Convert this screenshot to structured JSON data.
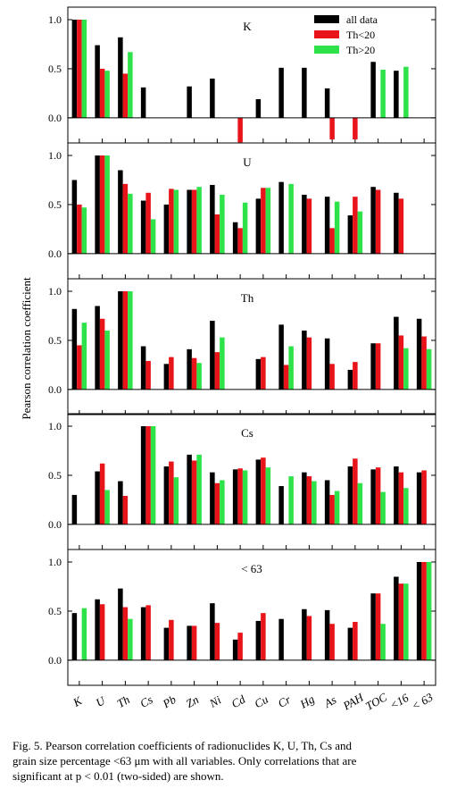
{
  "ylabel": "Pearson correlation coefficient",
  "x_labels": [
    "K",
    "U",
    "Th",
    "Cs",
    "Pb",
    "Zn",
    "Ni",
    "Cd",
    "Cu",
    "Cr",
    "Hg",
    "As",
    "PAH",
    "TOC",
    "<16",
    "< 63"
  ],
  "legend": [
    {
      "name": "all data",
      "color": "#000000"
    },
    {
      "name": "Th<20",
      "color": "#e8141a"
    },
    {
      "name": "Th>20",
      "color": "#2ee34a"
    }
  ],
  "panel_ticks": [
    "0.0",
    "0.5",
    "1.0"
  ],
  "chart_data": [
    {
      "type": "bar",
      "title": "K",
      "ylim": [
        -0.25,
        1.05
      ],
      "series": [
        {
          "name": "all data",
          "values": [
            1.0,
            0.74,
            0.82,
            0.31,
            null,
            0.32,
            0.4,
            null,
            0.19,
            0.51,
            0.51,
            0.3,
            null,
            0.57,
            0.48,
            null
          ]
        },
        {
          "name": "Th<20",
          "values": [
            1.0,
            0.5,
            0.45,
            null,
            null,
            null,
            null,
            -0.25,
            null,
            null,
            null,
            -0.22,
            -0.22,
            null,
            null,
            null
          ]
        },
        {
          "name": "Th>20",
          "values": [
            1.0,
            0.48,
            0.67,
            null,
            null,
            null,
            null,
            null,
            null,
            null,
            null,
            null,
            null,
            0.49,
            0.52,
            null
          ]
        }
      ]
    },
    {
      "type": "bar",
      "title": "U",
      "ylim": [
        -0.25,
        1.05
      ],
      "series": [
        {
          "name": "all data",
          "values": [
            0.75,
            1.0,
            0.85,
            0.54,
            0.5,
            0.65,
            0.7,
            0.32,
            0.56,
            0.73,
            0.6,
            0.58,
            0.39,
            0.68,
            0.62,
            null
          ]
        },
        {
          "name": "Th<20",
          "values": [
            0.5,
            1.0,
            0.71,
            0.62,
            0.66,
            0.65,
            0.4,
            0.26,
            0.67,
            null,
            0.56,
            0.26,
            0.58,
            0.65,
            0.56,
            null
          ]
        },
        {
          "name": "Th>20",
          "values": [
            0.47,
            1.0,
            0.61,
            0.35,
            0.65,
            0.68,
            0.6,
            0.52,
            0.67,
            0.71,
            null,
            0.53,
            0.43,
            null,
            null,
            null
          ]
        }
      ]
    },
    {
      "type": "bar",
      "title": "Th",
      "ylim": [
        -0.25,
        1.05
      ],
      "series": [
        {
          "name": "all data",
          "values": [
            0.82,
            0.85,
            1.0,
            0.44,
            0.26,
            0.41,
            0.7,
            null,
            0.31,
            0.66,
            0.6,
            0.52,
            0.2,
            0.47,
            0.74,
            0.72
          ]
        },
        {
          "name": "Th<20",
          "values": [
            0.45,
            0.72,
            1.0,
            0.29,
            0.33,
            0.32,
            0.38,
            null,
            0.33,
            0.25,
            0.53,
            0.26,
            0.28,
            0.47,
            0.55,
            0.54
          ]
        },
        {
          "name": "Th>20",
          "values": [
            0.68,
            0.6,
            1.0,
            null,
            null,
            0.27,
            0.53,
            null,
            null,
            0.44,
            null,
            null,
            null,
            null,
            0.42,
            0.41
          ]
        }
      ]
    },
    {
      "type": "bar",
      "title": "Cs",
      "ylim": [
        -0.25,
        1.05
      ],
      "series": [
        {
          "name": "all data",
          "values": [
            0.3,
            0.54,
            0.44,
            1.0,
            0.59,
            0.71,
            0.53,
            0.56,
            0.66,
            0.39,
            0.53,
            0.45,
            0.59,
            0.56,
            0.59,
            0.53
          ]
        },
        {
          "name": "Th<20",
          "values": [
            null,
            0.62,
            0.29,
            1.0,
            0.64,
            0.65,
            0.42,
            0.57,
            0.68,
            null,
            0.49,
            0.3,
            0.67,
            0.58,
            0.53,
            0.55
          ]
        },
        {
          "name": "Th>20",
          "values": [
            null,
            0.35,
            null,
            1.0,
            0.48,
            0.71,
            0.45,
            0.55,
            0.58,
            0.49,
            0.44,
            0.34,
            0.42,
            0.33,
            0.37,
            null
          ]
        }
      ]
    },
    {
      "type": "bar",
      "title": "< 63",
      "ylim": [
        -0.25,
        1.05
      ],
      "series": [
        {
          "name": "all data",
          "values": [
            0.48,
            0.62,
            0.73,
            0.54,
            0.33,
            0.35,
            0.58,
            0.21,
            0.4,
            0.42,
            0.52,
            0.51,
            0.33,
            0.68,
            0.85,
            1.0
          ]
        },
        {
          "name": "Th<20",
          "values": [
            null,
            0.57,
            0.54,
            0.56,
            0.41,
            0.35,
            0.38,
            0.28,
            0.48,
            null,
            0.45,
            0.37,
            0.39,
            0.68,
            0.78,
            1.0
          ]
        },
        {
          "name": "Th>20",
          "values": [
            0.53,
            null,
            0.42,
            null,
            null,
            null,
            null,
            null,
            null,
            null,
            null,
            null,
            null,
            0.37,
            0.78,
            1.0
          ]
        }
      ]
    }
  ],
  "caption": {
    "line1": "Fig. 5.  Pearson correlation coefficients of radionuclides K, U, Th, Cs and",
    "line2": "grain size percentage  <63 μm with all variables. Only correlations that are",
    "line3": "significant at p < 0.01 (two-sided) are shown."
  }
}
